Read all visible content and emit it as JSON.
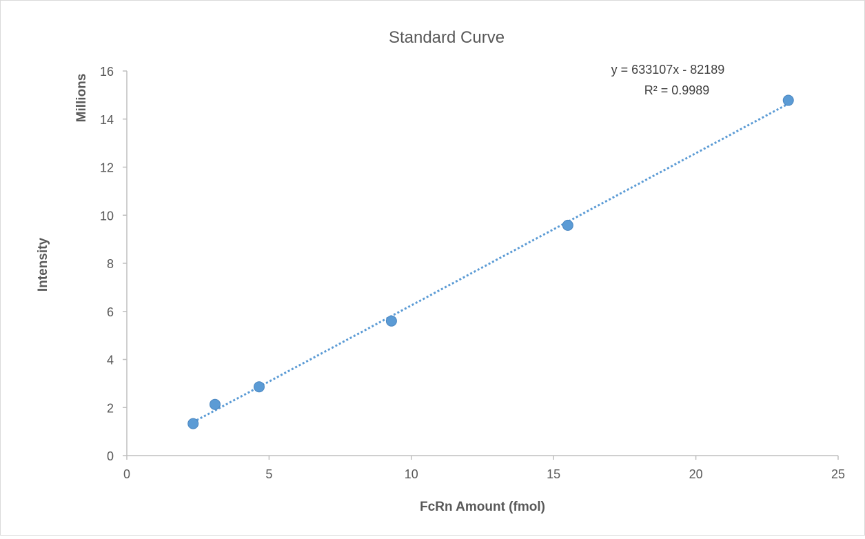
{
  "chart_data": {
    "type": "scatter",
    "title": "Standard Curve",
    "xlabel": "FcRn Amount (fmol)",
    "ylabel": "Intensity",
    "y_units_label": "Millions",
    "xlim": [
      0,
      25
    ],
    "ylim": [
      0,
      16
    ],
    "xticks": [
      0,
      5,
      10,
      15,
      20,
      25
    ],
    "yticks": [
      0,
      2,
      4,
      6,
      8,
      10,
      12,
      14,
      16
    ],
    "grid": false,
    "legend": "none",
    "series": [
      {
        "x": [
          2.33,
          3.1,
          4.65,
          9.3,
          15.5,
          23.25
        ],
        "y": [
          1.33,
          2.13,
          2.86,
          5.6,
          9.58,
          14.78
        ],
        "color": "#5B9BD5"
      }
    ],
    "trendline": {
      "type": "linear",
      "style": "dotted",
      "slope": 0.633107,
      "intercept": -0.082189,
      "x_range": [
        2.33,
        23.25
      ],
      "color": "#5B9BD5",
      "equation": "y = 633107x - 82189",
      "r_squared": "R² = 0.9989"
    }
  }
}
